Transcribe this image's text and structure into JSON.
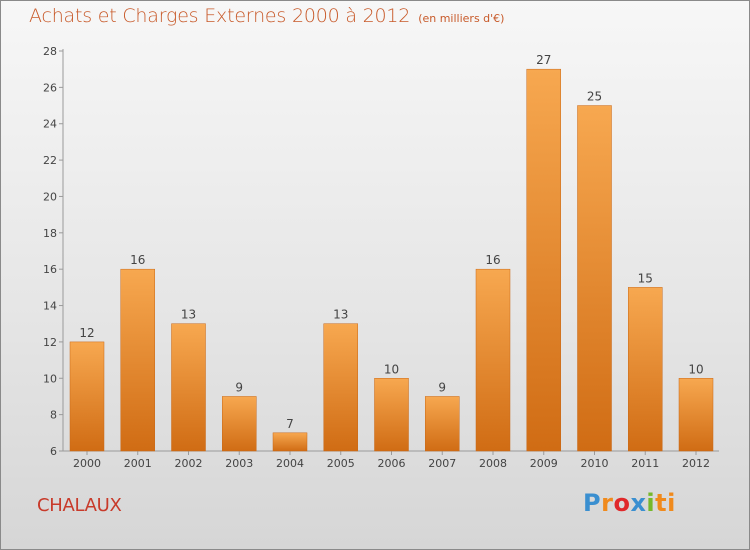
{
  "header": {
    "title": "Achats et Charges Externes 2000 à 2012",
    "unit": "(en milliers d'€)"
  },
  "footer": {
    "commune": "CHALAUX",
    "logo": "Proxiti",
    "logo_letters": [
      "P",
      "r",
      "o",
      "x",
      "i",
      "ti"
    ]
  },
  "colors": {
    "bar_light": "#f7a850",
    "bar_dark": "#d06c14",
    "title": "#c85a2a",
    "commune": "#c83a2a"
  },
  "chart_data": {
    "type": "bar",
    "title": "Achats et Charges Externes 2000 à 2012",
    "subtitle": "(en milliers d'€)",
    "xlabel": "",
    "ylabel": "",
    "categories": [
      "2000",
      "2001",
      "2002",
      "2003",
      "2004",
      "2005",
      "2006",
      "2007",
      "2008",
      "2009",
      "2010",
      "2011",
      "2012"
    ],
    "values": [
      12,
      16,
      13,
      9,
      7,
      13,
      10,
      9,
      16,
      27,
      25,
      15,
      10
    ],
    "data_labels": [
      "12",
      "16",
      "13",
      "9",
      "7",
      "13",
      "10",
      "9",
      "16",
      "27",
      "25",
      "15",
      "10"
    ],
    "ylim": [
      6,
      28
    ],
    "yticks": [
      6,
      8,
      10,
      12,
      14,
      16,
      18,
      20,
      22,
      24,
      26,
      28
    ],
    "grid": false,
    "legend": "none"
  }
}
